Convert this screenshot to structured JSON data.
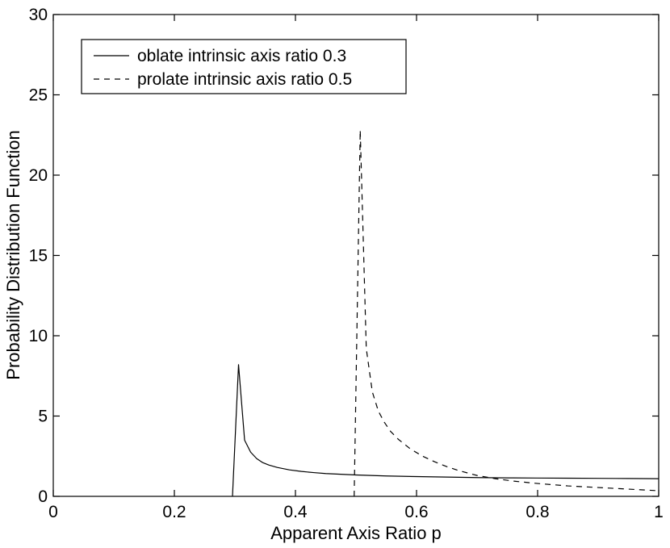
{
  "chart_data": {
    "type": "line",
    "title": "",
    "xlabel": "Apparent Axis Ratio p",
    "ylabel": "Probability Distribution Function",
    "xlim": [
      0,
      1
    ],
    "ylim": [
      0,
      30
    ],
    "xticks": [
      0,
      0.2,
      0.4,
      0.6,
      0.8,
      1
    ],
    "xtick_labels": [
      "0",
      "0.2",
      "0.4",
      "0.6",
      "0.8",
      "1"
    ],
    "yticks": [
      0,
      5,
      10,
      15,
      20,
      25,
      30
    ],
    "ytick_labels": [
      "0",
      "5",
      "10",
      "15",
      "20",
      "25",
      "30"
    ],
    "grid": false,
    "legend_position": "top-left",
    "series": [
      {
        "name": "oblate intrinsic axis ratio 0.3",
        "line_style": "solid",
        "color": "#000000",
        "x": [
          0.296,
          0.306,
          0.316,
          0.326,
          0.336,
          0.346,
          0.356,
          0.37,
          0.39,
          0.41,
          0.43,
          0.45,
          0.5,
          0.55,
          0.6,
          0.65,
          0.7,
          0.75,
          0.8,
          0.85,
          0.9,
          0.95,
          1.0
        ],
        "y": [
          0,
          8.2,
          3.5,
          2.75,
          2.35,
          2.1,
          1.95,
          1.8,
          1.65,
          1.55,
          1.48,
          1.42,
          1.33,
          1.27,
          1.23,
          1.2,
          1.17,
          1.15,
          1.14,
          1.13,
          1.12,
          1.11,
          1.1
        ]
      },
      {
        "name": "prolate intrinsic axis ratio 0.5",
        "line_style": "dashed",
        "color": "#000000",
        "x": [
          0.497,
          0.507,
          0.517,
          0.527,
          0.537,
          0.547,
          0.557,
          0.57,
          0.59,
          0.61,
          0.63,
          0.65,
          0.67,
          0.7,
          0.73,
          0.76,
          0.8,
          0.85,
          0.9,
          0.95,
          1.0
        ],
        "y": [
          0,
          22.8,
          9.2,
          6.5,
          5.3,
          4.6,
          4.05,
          3.55,
          2.95,
          2.5,
          2.15,
          1.85,
          1.6,
          1.3,
          1.1,
          0.95,
          0.8,
          0.65,
          0.55,
          0.45,
          0.35
        ]
      }
    ]
  }
}
